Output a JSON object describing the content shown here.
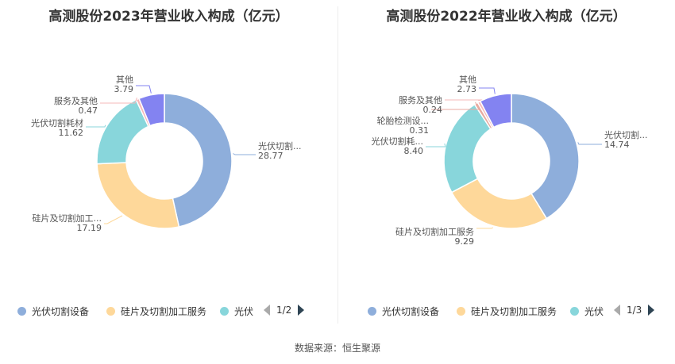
{
  "chart_data": [
    {
      "type": "pie",
      "title": "高测股份2023年营业收入构成（亿元）",
      "slices": [
        {
          "label": "光伏切割...",
          "value": 28.77,
          "value_text": "28.77",
          "color": "#8eaedb"
        },
        {
          "label": "硅片及切割加工...",
          "value": 17.19,
          "value_text": "17.19",
          "color": "#fed89a"
        },
        {
          "label": "光伏切割耗材",
          "value": 11.62,
          "value_text": "11.62",
          "color": "#88d6db"
        },
        {
          "label": "服务及其他",
          "value": 0.47,
          "value_text": "0.47",
          "color": "#f6b8b9"
        },
        {
          "label": "其他",
          "value": 3.79,
          "value_text": "3.79",
          "color": "#8383f1"
        }
      ],
      "legend": {
        "items": [
          {
            "label": "光伏切割设备",
            "color": "#8eaedb"
          },
          {
            "label": "硅片及切割加工服务",
            "color": "#fed89a"
          },
          {
            "label": "光伏",
            "color": "#88d6db"
          }
        ],
        "page": "1/2",
        "placement": "bottom"
      }
    },
    {
      "type": "pie",
      "title": "高测股份2022年营业收入构成（亿元）",
      "slices": [
        {
          "label": "光伏切割...",
          "value": 14.74,
          "value_text": "14.74",
          "color": "#8eaedb"
        },
        {
          "label": "硅片及切割加工服务",
          "value": 9.29,
          "value_text": "9.29",
          "color": "#fed89a"
        },
        {
          "label": "光伏切割耗...",
          "value": 8.4,
          "value_text": "8.40",
          "color": "#88d6db"
        },
        {
          "label": "轮胎检测设...",
          "value": 0.31,
          "value_text": "0.31",
          "color": "#e8aaa0"
        },
        {
          "label": "服务及其他",
          "value": 0.24,
          "value_text": "0.24",
          "color": "#f6b8b9"
        },
        {
          "label": "其他",
          "value": 2.73,
          "value_text": "2.73",
          "color": "#8383f1"
        }
      ],
      "legend": {
        "items": [
          {
            "label": "光伏切割设备",
            "color": "#8eaedb"
          },
          {
            "label": "硅片及切割加工服务",
            "color": "#fed89a"
          },
          {
            "label": "光伏",
            "color": "#88d6db"
          }
        ],
        "page": "1/3",
        "placement": "bottom"
      }
    }
  ],
  "footer": "数据来源：恒生聚源",
  "icons": {
    "prev": "chevron-left-icon",
    "next": "chevron-right-icon"
  }
}
